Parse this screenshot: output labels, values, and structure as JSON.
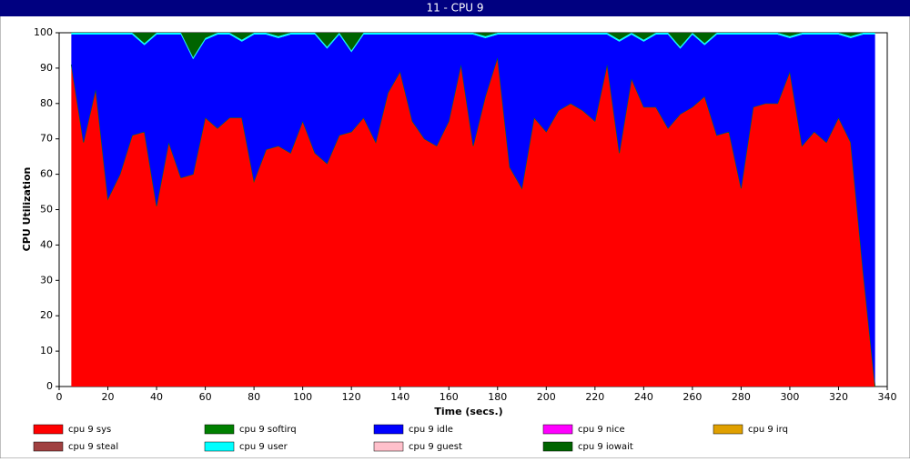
{
  "chart_data": {
    "type": "stacked-area",
    "title": "11 - CPU 9",
    "x_label": "Time (secs.)",
    "y_label": "CPU Utilization",
    "x": [
      5,
      10,
      15,
      20,
      25,
      30,
      35,
      40,
      45,
      50,
      55,
      60,
      65,
      70,
      75,
      80,
      85,
      90,
      95,
      100,
      105,
      110,
      115,
      120,
      125,
      130,
      135,
      140,
      145,
      150,
      155,
      160,
      165,
      170,
      175,
      180,
      185,
      190,
      195,
      200,
      205,
      210,
      215,
      220,
      225,
      230,
      235,
      240,
      245,
      250,
      255,
      260,
      265,
      270,
      275,
      280,
      285,
      290,
      295,
      300,
      305,
      310,
      315,
      320,
      325,
      330,
      335
    ],
    "series": [
      {
        "name": "cpu 9 sys",
        "color": "#ff0000",
        "values": [
          91,
          69,
          84,
          53,
          60,
          71,
          72,
          51,
          69,
          59,
          60,
          76,
          73,
          76,
          76,
          58,
          67,
          68,
          66,
          75,
          66,
          63,
          71,
          72,
          76,
          69,
          83,
          89,
          75,
          70,
          68,
          75,
          91,
          68,
          82,
          93,
          62,
          56,
          76,
          72,
          78,
          80,
          78,
          75,
          91,
          66,
          87,
          79,
          79,
          73,
          77,
          79,
          82,
          71,
          72,
          56,
          79,
          80,
          80,
          89,
          68,
          72,
          69,
          76,
          69,
          33,
          0
        ]
      },
      {
        "name": "cpu 9 softirq",
        "color": "#008000",
        "values": [
          0,
          0,
          0,
          0,
          0,
          0,
          0,
          0,
          0,
          0,
          0,
          0,
          0,
          0,
          0,
          0,
          0,
          0,
          0,
          0,
          0,
          0,
          0,
          0,
          0,
          0,
          0,
          0,
          0,
          0,
          0,
          0,
          0,
          0,
          0,
          0,
          0,
          0,
          0,
          0,
          0,
          0,
          0,
          0,
          0,
          0,
          0,
          0,
          0,
          0,
          0,
          0,
          0,
          0,
          0,
          0,
          0,
          0,
          0,
          0,
          0,
          0,
          0,
          0,
          0,
          0,
          0
        ]
      },
      {
        "name": "cpu 9 idle",
        "color": "#0000ff",
        "values": [
          8.5,
          30.5,
          15.5,
          46.5,
          39.5,
          28.5,
          24.5,
          48.5,
          30.5,
          40.5,
          32.5,
          22,
          26.5,
          23.5,
          21.5,
          41.5,
          32.5,
          30.5,
          33.5,
          24.5,
          33.5,
          32.5,
          28.5,
          22.5,
          23.5,
          30.5,
          16.5,
          10.5,
          24.5,
          29.5,
          31.5,
          24.5,
          8.5,
          31.5,
          16.5,
          6.5,
          37.5,
          43.5,
          23.5,
          27.5,
          21.5,
          19.5,
          21.5,
          24.5,
          8.5,
          31.5,
          12.5,
          18.5,
          20.5,
          26.5,
          18.5,
          20.5,
          14.5,
          28.5,
          27.5,
          43.5,
          20.5,
          19.5,
          19.5,
          9.5,
          31.5,
          27.5,
          30.5,
          23.5,
          29.5,
          66.5,
          99.5
        ]
      },
      {
        "name": "cpu 9 nice",
        "color": "#ff00ff",
        "values": [
          0,
          0,
          0,
          0,
          0,
          0,
          0,
          0,
          0,
          0,
          0,
          0,
          0,
          0,
          0,
          0,
          0,
          0,
          0,
          0,
          0,
          0,
          0,
          0,
          0,
          0,
          0,
          0,
          0,
          0,
          0,
          0,
          0,
          0,
          0,
          0,
          0,
          0,
          0,
          0,
          0,
          0,
          0,
          0,
          0,
          0,
          0,
          0,
          0,
          0,
          0,
          0,
          0,
          0,
          0,
          0,
          0,
          0,
          0,
          0,
          0,
          0,
          0,
          0,
          0,
          0,
          0
        ]
      },
      {
        "name": "cpu 9 irq",
        "color": "#e0a000",
        "values": [
          0,
          0,
          0,
          0,
          0,
          0,
          0,
          0,
          0,
          0,
          0,
          0,
          0,
          0,
          0,
          0,
          0,
          0,
          0,
          0,
          0,
          0,
          0,
          0,
          0,
          0,
          0,
          0,
          0,
          0,
          0,
          0,
          0,
          0,
          0,
          0,
          0,
          0,
          0,
          0,
          0,
          0,
          0,
          0,
          0,
          0,
          0,
          0,
          0,
          0,
          0,
          0,
          0,
          0,
          0,
          0,
          0,
          0,
          0,
          0,
          0,
          0,
          0,
          0,
          0,
          0,
          0
        ]
      },
      {
        "name": "cpu 9 steal",
        "color": "#a04040",
        "values": [
          0,
          0,
          0,
          0,
          0,
          0,
          0,
          0,
          0,
          0,
          0,
          0,
          0,
          0,
          0,
          0,
          0,
          0,
          0,
          0,
          0,
          0,
          0,
          0,
          0,
          0,
          0,
          0,
          0,
          0,
          0,
          0,
          0,
          0,
          0,
          0,
          0,
          0,
          0,
          0,
          0,
          0,
          0,
          0,
          0,
          0,
          0,
          0,
          0,
          0,
          0,
          0,
          0,
          0,
          0,
          0,
          0,
          0,
          0,
          0,
          0,
          0,
          0,
          0,
          0,
          0,
          0
        ]
      },
      {
        "name": "cpu 9 user",
        "color": "#00ffff",
        "values": [
          0.5,
          0.5,
          0.5,
          0.5,
          0.5,
          0.5,
          0.5,
          0.5,
          0.5,
          0.5,
          0.5,
          0.5,
          0.5,
          0.5,
          0.5,
          0.5,
          0.5,
          0.5,
          0.5,
          0.5,
          0.5,
          0.5,
          0.5,
          0.5,
          0.5,
          0.5,
          0.5,
          0.5,
          0.5,
          0.5,
          0.5,
          0.5,
          0.5,
          0.5,
          0.5,
          0.5,
          0.5,
          0.5,
          0.5,
          0.5,
          0.5,
          0.5,
          0.5,
          0.5,
          0.5,
          0.5,
          0.5,
          0.5,
          0.5,
          0.5,
          0.5,
          0.5,
          0.5,
          0.5,
          0.5,
          0.5,
          0.5,
          0.5,
          0.5,
          0.5,
          0.5,
          0.5,
          0.5,
          0.5,
          0.5,
          0.5,
          0.5
        ]
      },
      {
        "name": "cpu 9 guest",
        "color": "#ffc0cb",
        "values": [
          0,
          0,
          0,
          0,
          0,
          0,
          0,
          0,
          0,
          0,
          0,
          0,
          0,
          0,
          0,
          0,
          0,
          0,
          0,
          0,
          0,
          0,
          0,
          0,
          0,
          0,
          0,
          0,
          0,
          0,
          0,
          0,
          0,
          0,
          0,
          0,
          0,
          0,
          0,
          0,
          0,
          0,
          0,
          0,
          0,
          0,
          0,
          0,
          0,
          0,
          0,
          0,
          0,
          0,
          0,
          0,
          0,
          0,
          0,
          0,
          0,
          0,
          0,
          0,
          0,
          0,
          0
        ]
      },
      {
        "name": "cpu 9 iowait",
        "color": "#006400",
        "values": [
          0,
          0,
          0,
          0,
          0,
          0,
          3,
          0,
          0,
          0,
          7,
          1.5,
          0,
          0,
          2,
          0,
          0,
          1,
          0,
          0,
          0,
          4,
          0,
          5,
          0,
          0,
          0,
          0,
          0,
          0,
          0,
          0,
          0,
          0,
          1,
          0,
          0,
          0,
          0,
          0,
          0,
          0,
          0,
          0,
          0,
          2,
          0,
          2,
          0,
          0,
          4,
          0,
          3,
          0,
          0,
          0,
          0,
          0,
          0,
          1,
          0,
          0,
          0,
          0,
          1,
          0,
          0
        ]
      }
    ],
    "xlim": [
      0,
      340
    ],
    "xticks": [
      0,
      20,
      40,
      60,
      80,
      100,
      120,
      140,
      160,
      180,
      200,
      220,
      240,
      260,
      280,
      300,
      320,
      340
    ],
    "ylim": [
      0,
      100
    ],
    "yticks": [
      0,
      10,
      20,
      30,
      40,
      50,
      60,
      70,
      80,
      90,
      100
    ]
  }
}
